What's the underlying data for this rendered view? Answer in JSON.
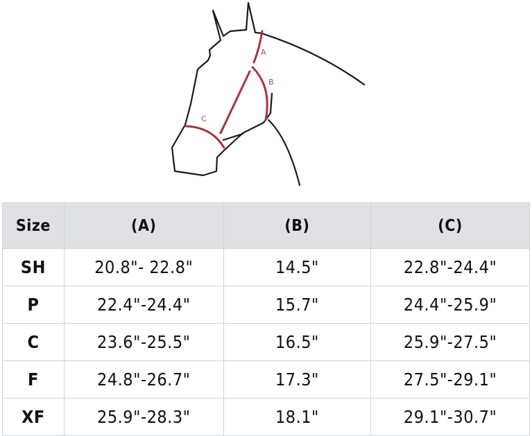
{
  "diagram": {
    "labels": [
      "A",
      "B",
      "C"
    ],
    "colors": {
      "outline": "#1a1a1a",
      "measure": "#a8323e",
      "label": "#b24a62"
    }
  },
  "table": {
    "headers": [
      "Size",
      "(A)",
      "(B)",
      "(C)"
    ],
    "rows": [
      [
        "SH",
        "20.8\"- 22.8\"",
        "14.5\"",
        "22.8\"-24.4\""
      ],
      [
        "P",
        "22.4\"-24.4\"",
        "15.7\"",
        "24.4\"-25.9\""
      ],
      [
        "C",
        "23.6\"-25.5\"",
        "16.5\"",
        "25.9\"-27.5\""
      ],
      [
        "F",
        "24.8\"-26.7\"",
        "17.3\"",
        "27.5\"-29.1\""
      ],
      [
        "XF",
        "25.9\"-28.3\"",
        "18.1\"",
        "29.1\"-30.7\""
      ]
    ]
  }
}
